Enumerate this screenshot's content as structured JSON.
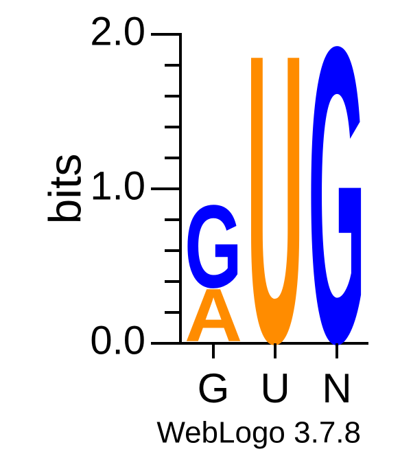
{
  "chart_data": {
    "type": "sequence-logo",
    "ylabel": "bits",
    "ylim": [
      0,
      2
    ],
    "y_ticks": [
      "0.0",
      "1.0",
      "2.0"
    ],
    "positions": [
      {
        "label": "G",
        "letters": [
          {
            "char": "A",
            "bits": 0.35,
            "color": "#ff8c00"
          },
          {
            "char": "G",
            "bits": 0.55,
            "color": "#0000ff"
          }
        ]
      },
      {
        "label": "U",
        "letters": [
          {
            "char": "U",
            "bits": 1.92,
            "color": "#ff8c00"
          }
        ]
      },
      {
        "label": "N",
        "letters": [
          {
            "char": "G",
            "bits": 1.97,
            "color": "#0000ff"
          }
        ]
      }
    ],
    "footer": "WebLogo 3.7.8"
  }
}
